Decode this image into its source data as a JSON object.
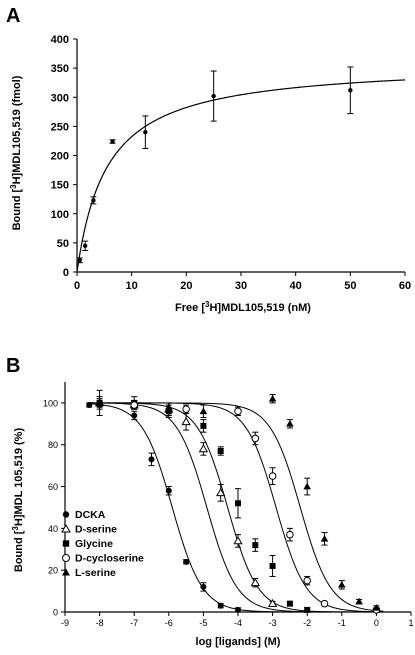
{
  "panels": {
    "A": {
      "letter": "A"
    },
    "B": {
      "letter": "B"
    }
  },
  "chart_data": [
    {
      "type": "scatter",
      "panel": "A",
      "xlabel": "Free [3H]MDL105,519 (nM)",
      "xlabel_parts": {
        "pre": "Free [",
        "sup": "3",
        "post": "H]MDL105,519 (nM)"
      },
      "ylabel": "Bound [3H]MDL105,519 (fmol)",
      "ylabel_parts": {
        "pre": "Bound [",
        "sup": "3",
        "post": "H]MDL105,519 (fmol)"
      },
      "xlim": [
        0,
        60
      ],
      "ylim": [
        0,
        400
      ],
      "xticks": [
        0,
        10,
        20,
        30,
        40,
        50,
        60
      ],
      "yticks": [
        0,
        50,
        100,
        150,
        200,
        250,
        300,
        350,
        400
      ],
      "grid": false,
      "series": [
        {
          "points": [
            {
              "x": 0.5,
              "y": 20,
              "err": 4
            },
            {
              "x": 1.5,
              "y": 45,
              "err": 8
            },
            {
              "x": 3,
              "y": 123,
              "err": 6
            },
            {
              "x": 6.5,
              "y": 224,
              "err": 3
            },
            {
              "x": 12.5,
              "y": 240,
              "err": 28
            },
            {
              "x": 25,
              "y": 302,
              "err": 43
            },
            {
              "x": 50,
              "y": 312,
              "err": 40
            }
          ]
        }
      ],
      "fit": {
        "model": "one-site binding",
        "bmax": 360,
        "kd": 5.5
      }
    },
    {
      "type": "scatter",
      "panel": "B",
      "xlabel": "log [ligands] (M)",
      "ylabel": "Bound [3H]MDL 105,519 (%)",
      "ylabel_parts": {
        "pre": "Bound [",
        "sup": "3",
        "post": "H]MDL 105,519 (%)"
      },
      "xlim": [
        -9,
        1
      ],
      "ylim": [
        0,
        110
      ],
      "xticks": [
        -9,
        -8,
        -7,
        -6,
        -5,
        -4,
        -3,
        -2,
        -1,
        0,
        1
      ],
      "yticks": [
        0,
        20,
        40,
        60,
        80,
        100
      ],
      "grid": false,
      "legend_position": "lower-left",
      "series": [
        {
          "name": "DCKA",
          "marker": "filled-circle",
          "ic50_log": -5.9,
          "points": [
            {
              "x": -8.3,
              "y": 99,
              "err": 1
            },
            {
              "x": -8,
              "y": 99,
              "err": 1
            },
            {
              "x": -7,
              "y": 94,
              "err": 2
            },
            {
              "x": -6.5,
              "y": 73,
              "err": 3
            },
            {
              "x": -6,
              "y": 58,
              "err": 2
            },
            {
              "x": -5.5,
              "y": 24,
              "err": 1
            },
            {
              "x": -5,
              "y": 12,
              "err": 2
            },
            {
              "x": -4.5,
              "y": 3,
              "err": 1
            },
            {
              "x": -4,
              "y": 1,
              "err": 1
            }
          ]
        },
        {
          "name": "D-serine",
          "marker": "open-triangle",
          "ic50_log": -4.9,
          "points": [
            {
              "x": -8,
              "y": 100,
              "err": 3
            },
            {
              "x": -7,
              "y": 99,
              "err": 2
            },
            {
              "x": -6,
              "y": 97,
              "err": 3
            },
            {
              "x": -5.5,
              "y": 91,
              "err": 4
            },
            {
              "x": -5,
              "y": 78,
              "err": 3
            },
            {
              "x": -4.5,
              "y": 57,
              "err": 4
            },
            {
              "x": -4,
              "y": 34,
              "err": 3
            },
            {
              "x": -3.5,
              "y": 14,
              "err": 2
            },
            {
              "x": -3,
              "y": 4,
              "err": 1
            }
          ]
        },
        {
          "name": "Glycine",
          "marker": "filled-square",
          "ic50_log": -4.3,
          "points": [
            {
              "x": -8,
              "y": 100,
              "err": 6
            },
            {
              "x": -7,
              "y": 100,
              "err": 3
            },
            {
              "x": -6,
              "y": 96,
              "err": 3
            },
            {
              "x": -5,
              "y": 89,
              "err": 3
            },
            {
              "x": -4.5,
              "y": 77,
              "err": 2
            },
            {
              "x": -4,
              "y": 52,
              "err": 7
            },
            {
              "x": -3.5,
              "y": 32,
              "err": 3
            },
            {
              "x": -3,
              "y": 22,
              "err": 5
            },
            {
              "x": -2.5,
              "y": 4,
              "err": 1
            },
            {
              "x": -2,
              "y": 1,
              "err": 1
            }
          ]
        },
        {
          "name": "D-cycloserine",
          "marker": "open-circle",
          "ic50_log": -2.9,
          "points": [
            {
              "x": -7,
              "y": 99,
              "err": 2
            },
            {
              "x": -5.5,
              "y": 97,
              "err": 2
            },
            {
              "x": -4,
              "y": 96,
              "err": 2
            },
            {
              "x": -3.5,
              "y": 83,
              "err": 3
            },
            {
              "x": -3,
              "y": 65,
              "err": 4
            },
            {
              "x": -2.5,
              "y": 37,
              "err": 3
            },
            {
              "x": -2,
              "y": 15,
              "err": 2
            },
            {
              "x": -1.5,
              "y": 4,
              "err": 1
            },
            {
              "x": 0,
              "y": 1,
              "err": 1
            }
          ]
        },
        {
          "name": "L-serine",
          "marker": "filled-triangle",
          "ic50_log": -2.2,
          "points": [
            {
              "x": -8,
              "y": 100,
              "err": 2
            },
            {
              "x": -6,
              "y": 98,
              "err": 2
            },
            {
              "x": -5,
              "y": 96,
              "err": 3
            },
            {
              "x": -3,
              "y": 102,
              "err": 2
            },
            {
              "x": -2.5,
              "y": 90,
              "err": 2
            },
            {
              "x": -2,
              "y": 60,
              "err": 4
            },
            {
              "x": -1.5,
              "y": 35,
              "err": 3
            },
            {
              "x": -1,
              "y": 13,
              "err": 2
            },
            {
              "x": -0.5,
              "y": 5,
              "err": 1
            },
            {
              "x": 0,
              "y": 2,
              "err": 1
            }
          ]
        }
      ]
    }
  ]
}
